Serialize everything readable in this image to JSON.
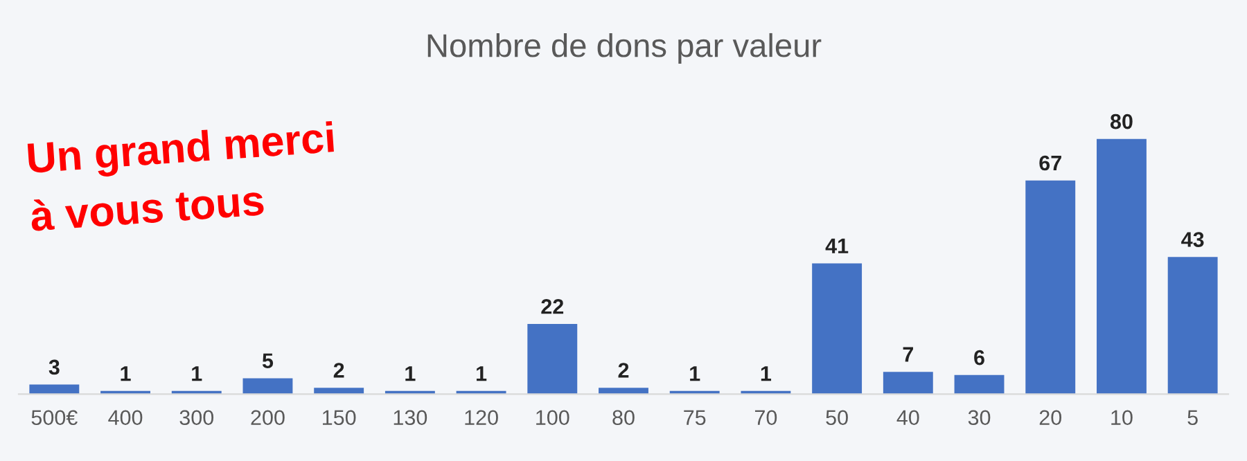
{
  "chart_data": {
    "type": "bar",
    "title": "Nombre de dons par valeur",
    "categories": [
      "500€",
      "400",
      "300",
      "200",
      "150",
      "130",
      "120",
      "100",
      "80",
      "75",
      "70",
      "50",
      "40",
      "30",
      "20",
      "10",
      "5"
    ],
    "values": [
      3,
      1,
      1,
      5,
      2,
      1,
      1,
      22,
      2,
      1,
      1,
      41,
      7,
      6,
      67,
      80,
      43
    ],
    "color": "#4472c4",
    "data_labels": true,
    "grid": false,
    "annotations": [
      "Un grand merci\nà vous tous"
    ]
  }
}
